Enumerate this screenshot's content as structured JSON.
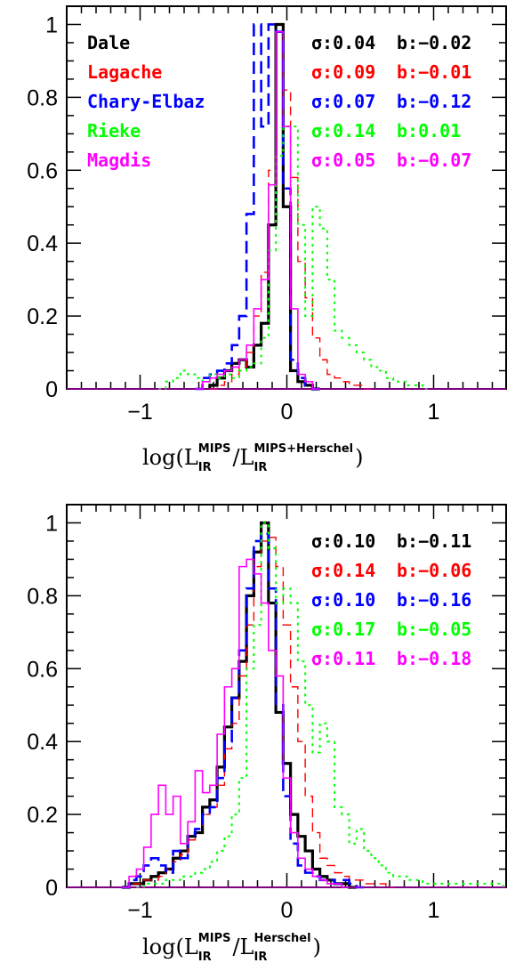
{
  "chart_data": [
    {
      "type": "step-histogram",
      "xlim": [
        -1.5,
        1.5
      ],
      "ylim": [
        0,
        1.05
      ],
      "x_ticks": [
        -1,
        0,
        1
      ],
      "x_tick_labels": [
        "−1",
        "0",
        "1"
      ],
      "y_ticks": [
        0,
        0.2,
        0.4,
        0.6,
        0.8,
        1
      ],
      "y_tick_labels": [
        "0",
        "0.2",
        "0.4",
        "0.6",
        "0.8",
        "1"
      ],
      "xlabel": {
        "prefix": "log(L",
        "sub1": "IR",
        "sup1": "MIPS",
        "mid": "/L",
        "sub2": "IR",
        "sup2": "MIPS+Herschel",
        "suffix": ")"
      },
      "bin_width": 0.05,
      "legend_position": "top-left",
      "series": [
        {
          "name": "Dale",
          "color": "#000000",
          "dash": "",
          "width": 3.2,
          "x": [
            -0.5,
            -0.45,
            -0.4,
            -0.35,
            -0.3,
            -0.25,
            -0.2,
            -0.15,
            -0.1,
            -0.05,
            0,
            0.05,
            0.1,
            0.15,
            0.2
          ],
          "values": [
            0.01,
            0.03,
            0.05,
            0.07,
            0.08,
            0.06,
            0.12,
            0.18,
            0.45,
            1.0,
            0.5,
            0.05,
            0.02,
            0.01,
            0
          ],
          "stat": {
            "sigma": "σ:0.04",
            "b": "b:−0.02"
          }
        },
        {
          "name": "Lagache",
          "color": "#ff0000",
          "dash": "10 6",
          "width": 1.4,
          "x": [
            -0.5,
            -0.45,
            -0.4,
            -0.35,
            -0.3,
            -0.25,
            -0.2,
            -0.15,
            -0.1,
            -0.05,
            0,
            0.05,
            0.1,
            0.15,
            0.2,
            0.25,
            0.3,
            0.35,
            0.4,
            0.45,
            0.5,
            0.55
          ],
          "values": [
            0,
            0.01,
            0.02,
            0.04,
            0.06,
            0.1,
            0.2,
            0.32,
            0.6,
            0.98,
            0.82,
            0.58,
            0.35,
            0.25,
            0.14,
            0.08,
            0.04,
            0.03,
            0.02,
            0.01,
            0.01,
            0
          ],
          "stat": {
            "sigma": "σ:0.09",
            "b": "b:−0.01"
          }
        },
        {
          "name": "Chary-Elbaz",
          "color": "#0000ff",
          "dash": "14 7",
          "width": 2.6,
          "x": [
            -0.6,
            -0.55,
            -0.5,
            -0.45,
            -0.4,
            -0.35,
            -0.3,
            -0.25,
            -0.2,
            -0.15,
            -0.1,
            -0.05,
            0,
            0.05,
            0.1,
            0.15,
            0.2
          ],
          "values": [
            0,
            0.03,
            0.04,
            0.05,
            0.07,
            0.12,
            0.2,
            0.48,
            1.0,
            0.72,
            1.0,
            0.98,
            0.55,
            0.08,
            0.03,
            0.01,
            0
          ],
          "stat": {
            "sigma": "σ:0.07",
            "b": "b:−0.12"
          }
        },
        {
          "name": "Rieke",
          "color": "#00ff00",
          "dash": "3 5",
          "width": 2.0,
          "x": [
            -0.85,
            -0.8,
            -0.75,
            -0.7,
            -0.65,
            -0.6,
            -0.55,
            -0.5,
            -0.45,
            -0.4,
            -0.35,
            -0.3,
            -0.25,
            -0.2,
            -0.15,
            -0.1,
            -0.05,
            0,
            0.05,
            0.1,
            0.15,
            0.2,
            0.25,
            0.3,
            0.35,
            0.4,
            0.45,
            0.5,
            0.55,
            0.6,
            0.65,
            0.7,
            0.75,
            0.8,
            0.85,
            0.9,
            0.95
          ],
          "values": [
            0,
            0.02,
            0.03,
            0.05,
            0.04,
            0.03,
            0.02,
            0.04,
            0.03,
            0.04,
            0.03,
            0.05,
            0.06,
            0.07,
            0.14,
            0.38,
            0.64,
            0.72,
            0.72,
            0.45,
            0.2,
            0.5,
            0.44,
            0.3,
            0.16,
            0.14,
            0.12,
            0.1,
            0.08,
            0.06,
            0.05,
            0.03,
            0.02,
            0.02,
            0.01,
            0.01,
            0
          ],
          "stat": {
            "sigma": "σ:0.14",
            "b": "b:0.01"
          }
        },
        {
          "name": "Magdis",
          "color": "#ff00ff",
          "dash": "",
          "width": 1.6,
          "x": [
            -0.6,
            -0.55,
            -0.5,
            -0.45,
            -0.4,
            -0.35,
            -0.3,
            -0.25,
            -0.2,
            -0.15,
            -0.1,
            -0.05,
            0,
            0.05,
            0.1,
            0.15,
            0.2
          ],
          "values": [
            0,
            0.02,
            0.03,
            0.04,
            0.05,
            0.06,
            0.08,
            0.12,
            0.22,
            0.3,
            0.56,
            0.98,
            0.72,
            0.22,
            0.04,
            0.02,
            0
          ],
          "stat": {
            "sigma": "σ:0.05",
            "b": "b:−0.07"
          }
        }
      ]
    },
    {
      "type": "step-histogram",
      "xlim": [
        -1.5,
        1.5
      ],
      "ylim": [
        0,
        1.05
      ],
      "x_ticks": [
        -1,
        0,
        1
      ],
      "x_tick_labels": [
        "−1",
        "0",
        "1"
      ],
      "y_ticks": [
        0,
        0.2,
        0.4,
        0.6,
        0.8,
        1
      ],
      "y_tick_labels": [
        "0",
        "0.2",
        "0.4",
        "0.6",
        "0.8",
        "1"
      ],
      "xlabel": {
        "prefix": "log(L",
        "sub1": "IR",
        "sup1": "MIPS",
        "mid": "/L",
        "sub2": "IR",
        "sup2": "Herschel",
        "suffix": ")"
      },
      "bin_width": 0.05,
      "series": [
        {
          "name": "Dale",
          "color": "#000000",
          "dash": "",
          "width": 3.2,
          "x": [
            -1.1,
            -1.05,
            -1.0,
            -0.95,
            -0.9,
            -0.85,
            -0.8,
            -0.75,
            -0.7,
            -0.65,
            -0.6,
            -0.55,
            -0.5,
            -0.45,
            -0.4,
            -0.35,
            -0.3,
            -0.25,
            -0.2,
            -0.15,
            -0.1,
            -0.05,
            0,
            0.05,
            0.1,
            0.15,
            0.2,
            0.25,
            0.3,
            0.35,
            0.4,
            0.45
          ],
          "values": [
            0,
            0.01,
            0.01,
            0.02,
            0.03,
            0.04,
            0.05,
            0.08,
            0.1,
            0.14,
            0.15,
            0.22,
            0.24,
            0.33,
            0.44,
            0.52,
            0.62,
            0.8,
            0.92,
            1.0,
            0.78,
            0.48,
            0.34,
            0.2,
            0.14,
            0.1,
            0.05,
            0.03,
            0.02,
            0.01,
            0.01,
            0
          ],
          "stat": {
            "sigma": "σ:0.10",
            "b": "b:−0.11"
          }
        },
        {
          "name": "Lagache",
          "color": "#ff0000",
          "dash": "10 6",
          "width": 1.4,
          "x": [
            -1.1,
            -1.05,
            -1.0,
            -0.95,
            -0.9,
            -0.85,
            -0.8,
            -0.75,
            -0.7,
            -0.65,
            -0.6,
            -0.55,
            -0.5,
            -0.45,
            -0.4,
            -0.35,
            -0.3,
            -0.25,
            -0.2,
            -0.15,
            -0.1,
            -0.05,
            0,
            0.05,
            0.1,
            0.15,
            0.2,
            0.25,
            0.3,
            0.35,
            0.4,
            0.45,
            0.5,
            0.55,
            0.6,
            0.65,
            0.7
          ],
          "values": [
            0,
            0.01,
            0.01,
            0.02,
            0.02,
            0.03,
            0.05,
            0.07,
            0.09,
            0.13,
            0.16,
            0.2,
            0.22,
            0.28,
            0.38,
            0.45,
            0.58,
            0.72,
            0.88,
            0.95,
            0.96,
            0.88,
            0.72,
            0.55,
            0.4,
            0.25,
            0.15,
            0.08,
            0.06,
            0.04,
            0.03,
            0.02,
            0.02,
            0.01,
            0.01,
            0.01,
            0
          ],
          "stat": {
            "sigma": "σ:0.14",
            "b": "b:−0.06"
          }
        },
        {
          "name": "Chary-Elbaz",
          "color": "#0000ff",
          "dash": "14 7",
          "width": 2.6,
          "x": [
            -1.1,
            -1.05,
            -1.0,
            -0.95,
            -0.9,
            -0.85,
            -0.8,
            -0.75,
            -0.7,
            -0.65,
            -0.6,
            -0.55,
            -0.5,
            -0.45,
            -0.4,
            -0.35,
            -0.3,
            -0.25,
            -0.2,
            -0.15,
            -0.1,
            -0.05,
            0,
            0.05,
            0.1,
            0.15,
            0.2,
            0.25,
            0.3,
            0.35,
            0.4,
            0.45,
            0.5
          ],
          "values": [
            0,
            0.02,
            0.03,
            0.06,
            0.08,
            0.06,
            0.04,
            0.1,
            0.08,
            0.14,
            0.16,
            0.2,
            0.22,
            0.3,
            0.4,
            0.52,
            0.65,
            0.82,
            0.95,
            0.97,
            0.82,
            0.5,
            0.25,
            0.12,
            0.06,
            0.04,
            0.03,
            0.02,
            0.02,
            0.01,
            0.02,
            0.01,
            0
          ],
          "stat": {
            "sigma": "σ:0.10",
            "b": "b:−0.16"
          }
        },
        {
          "name": "Rieke",
          "color": "#00ff00",
          "dash": "3 5",
          "width": 2.0,
          "x": [
            -1.0,
            -0.95,
            -0.9,
            -0.85,
            -0.8,
            -0.75,
            -0.7,
            -0.65,
            -0.6,
            -0.55,
            -0.5,
            -0.45,
            -0.4,
            -0.35,
            -0.3,
            -0.25,
            -0.2,
            -0.15,
            -0.1,
            -0.05,
            0,
            0.05,
            0.1,
            0.15,
            0.2,
            0.25,
            0.3,
            0.35,
            0.4,
            0.45,
            0.5,
            0.55,
            0.6,
            0.65,
            0.7,
            0.75,
            0.8,
            0.85,
            0.9,
            0.95,
            1.0,
            1.05,
            1.1,
            1.15,
            1.2,
            1.25,
            1.3,
            1.35,
            1.4,
            1.45
          ],
          "values": [
            0,
            0.01,
            0.01,
            0.01,
            0.02,
            0.02,
            0.03,
            0.03,
            0.04,
            0.05,
            0.07,
            0.1,
            0.14,
            0.2,
            0.3,
            0.6,
            0.72,
            1.0,
            0.93,
            0.78,
            0.82,
            0.78,
            0.62,
            0.5,
            0.37,
            0.45,
            0.4,
            0.22,
            0.2,
            0.12,
            0.16,
            0.1,
            0.08,
            0.06,
            0.04,
            0.03,
            0.03,
            0.02,
            0.02,
            0.01,
            0.01,
            0.01,
            0.01,
            0.01,
            0.01,
            0.01,
            0.01,
            0.01,
            0.01,
            0.01
          ],
          "stat": {
            "sigma": "σ:0.17",
            "b": "b:−0.05"
          }
        },
        {
          "name": "Magdis",
          "color": "#ff00ff",
          "dash": "",
          "width": 1.6,
          "x": [
            -1.1,
            -1.05,
            -1.0,
            -0.95,
            -0.9,
            -0.85,
            -0.8,
            -0.75,
            -0.7,
            -0.65,
            -0.6,
            -0.55,
            -0.5,
            -0.45,
            -0.4,
            -0.35,
            -0.3,
            -0.25,
            -0.2,
            -0.15,
            -0.1,
            -0.05,
            0,
            0.05,
            0.1,
            0.15,
            0.2,
            0.25,
            0.3,
            0.35,
            0.4
          ],
          "values": [
            0,
            0.03,
            0.05,
            0.11,
            0.2,
            0.28,
            0.2,
            0.25,
            0.12,
            0.18,
            0.32,
            0.26,
            0.28,
            0.42,
            0.55,
            0.6,
            0.88,
            0.9,
            0.86,
            0.78,
            0.65,
            0.58,
            0.3,
            0.15,
            0.08,
            0.05,
            0.03,
            0.02,
            0.01,
            0.01,
            0
          ],
          "stat": {
            "sigma": "σ:0.11",
            "b": "b:−0.18"
          }
        }
      ]
    }
  ]
}
